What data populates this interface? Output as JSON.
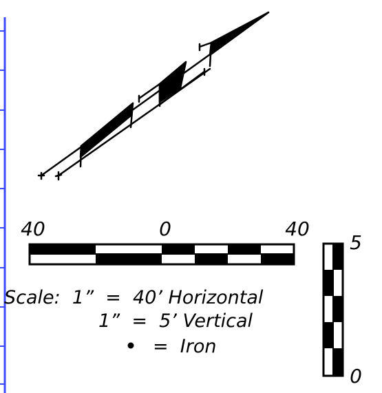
{
  "colors": {
    "frame_border": "#3b4bff",
    "ink": "#000000",
    "paper": "#ffffff"
  },
  "horizontal_scale": {
    "tick_labels": [
      "40",
      "0",
      "40"
    ]
  },
  "vertical_scale": {
    "top_label": "5",
    "bottom_label": "0"
  },
  "legend": {
    "line1": "Scale:  1”  =  40’ Horizontal",
    "line2": "1”  =  5’ Vertical",
    "line3": "=  Iron",
    "iron_marker_icon": "filled-dot"
  }
}
